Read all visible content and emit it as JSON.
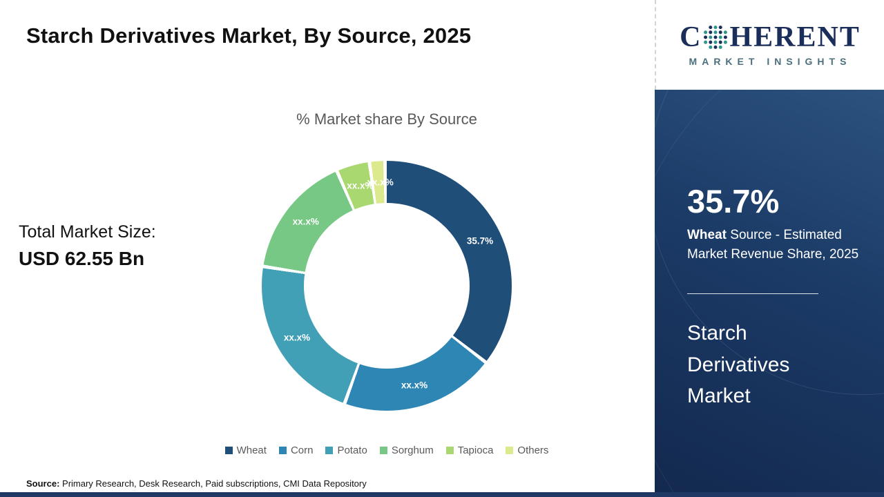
{
  "slide": {
    "title": "Starch Derivatives Market, By Source, 2025",
    "total_market_label": "Total Market Size:",
    "total_market_value": "USD 62.55 Bn",
    "source_label": "Source:",
    "source_text": "Primary Research, Desk Research, Paid subscriptions, CMI Data Repository"
  },
  "chart_data": {
    "type": "pie",
    "donut": true,
    "title": "% Market share By Source",
    "legend_position": "bottom",
    "start_angle_deg": 0,
    "segments": [
      {
        "label": "Wheat",
        "value": 35.7,
        "display": "35.7%",
        "color": "#1f4e79"
      },
      {
        "label": "Corn",
        "value": 20.0,
        "display": "xx.x%",
        "color": "#2e86b5"
      },
      {
        "label": "Potato",
        "value": 22.0,
        "display": "xx.x%",
        "color": "#41a0b5"
      },
      {
        "label": "Sorghum",
        "value": 16.0,
        "display": "xx.x%",
        "color": "#77c785"
      },
      {
        "label": "Tapioca",
        "value": 4.3,
        "display": "xx.x%",
        "color": "#a9d871"
      },
      {
        "label": "Others",
        "value": 2.0,
        "display": "xx.x%",
        "color": "#dce98c"
      }
    ]
  },
  "sidebar": {
    "stat_value": "35.7%",
    "stat_desc_bold": "Wheat",
    "stat_desc_rest": " Source - Estimated Market Revenue Share, 2025",
    "market_name": "Starch Derivatives Market"
  },
  "logo": {
    "word_prefix": "C",
    "word_suffix": "HERENT",
    "subtitle": "MARKET INSIGHTS"
  },
  "colors": {
    "panel_navy": "#1b3a66",
    "bottom_bar": "#203864",
    "logo_navy": "#1b2d5b",
    "logo_teal": "#2e9688"
  }
}
